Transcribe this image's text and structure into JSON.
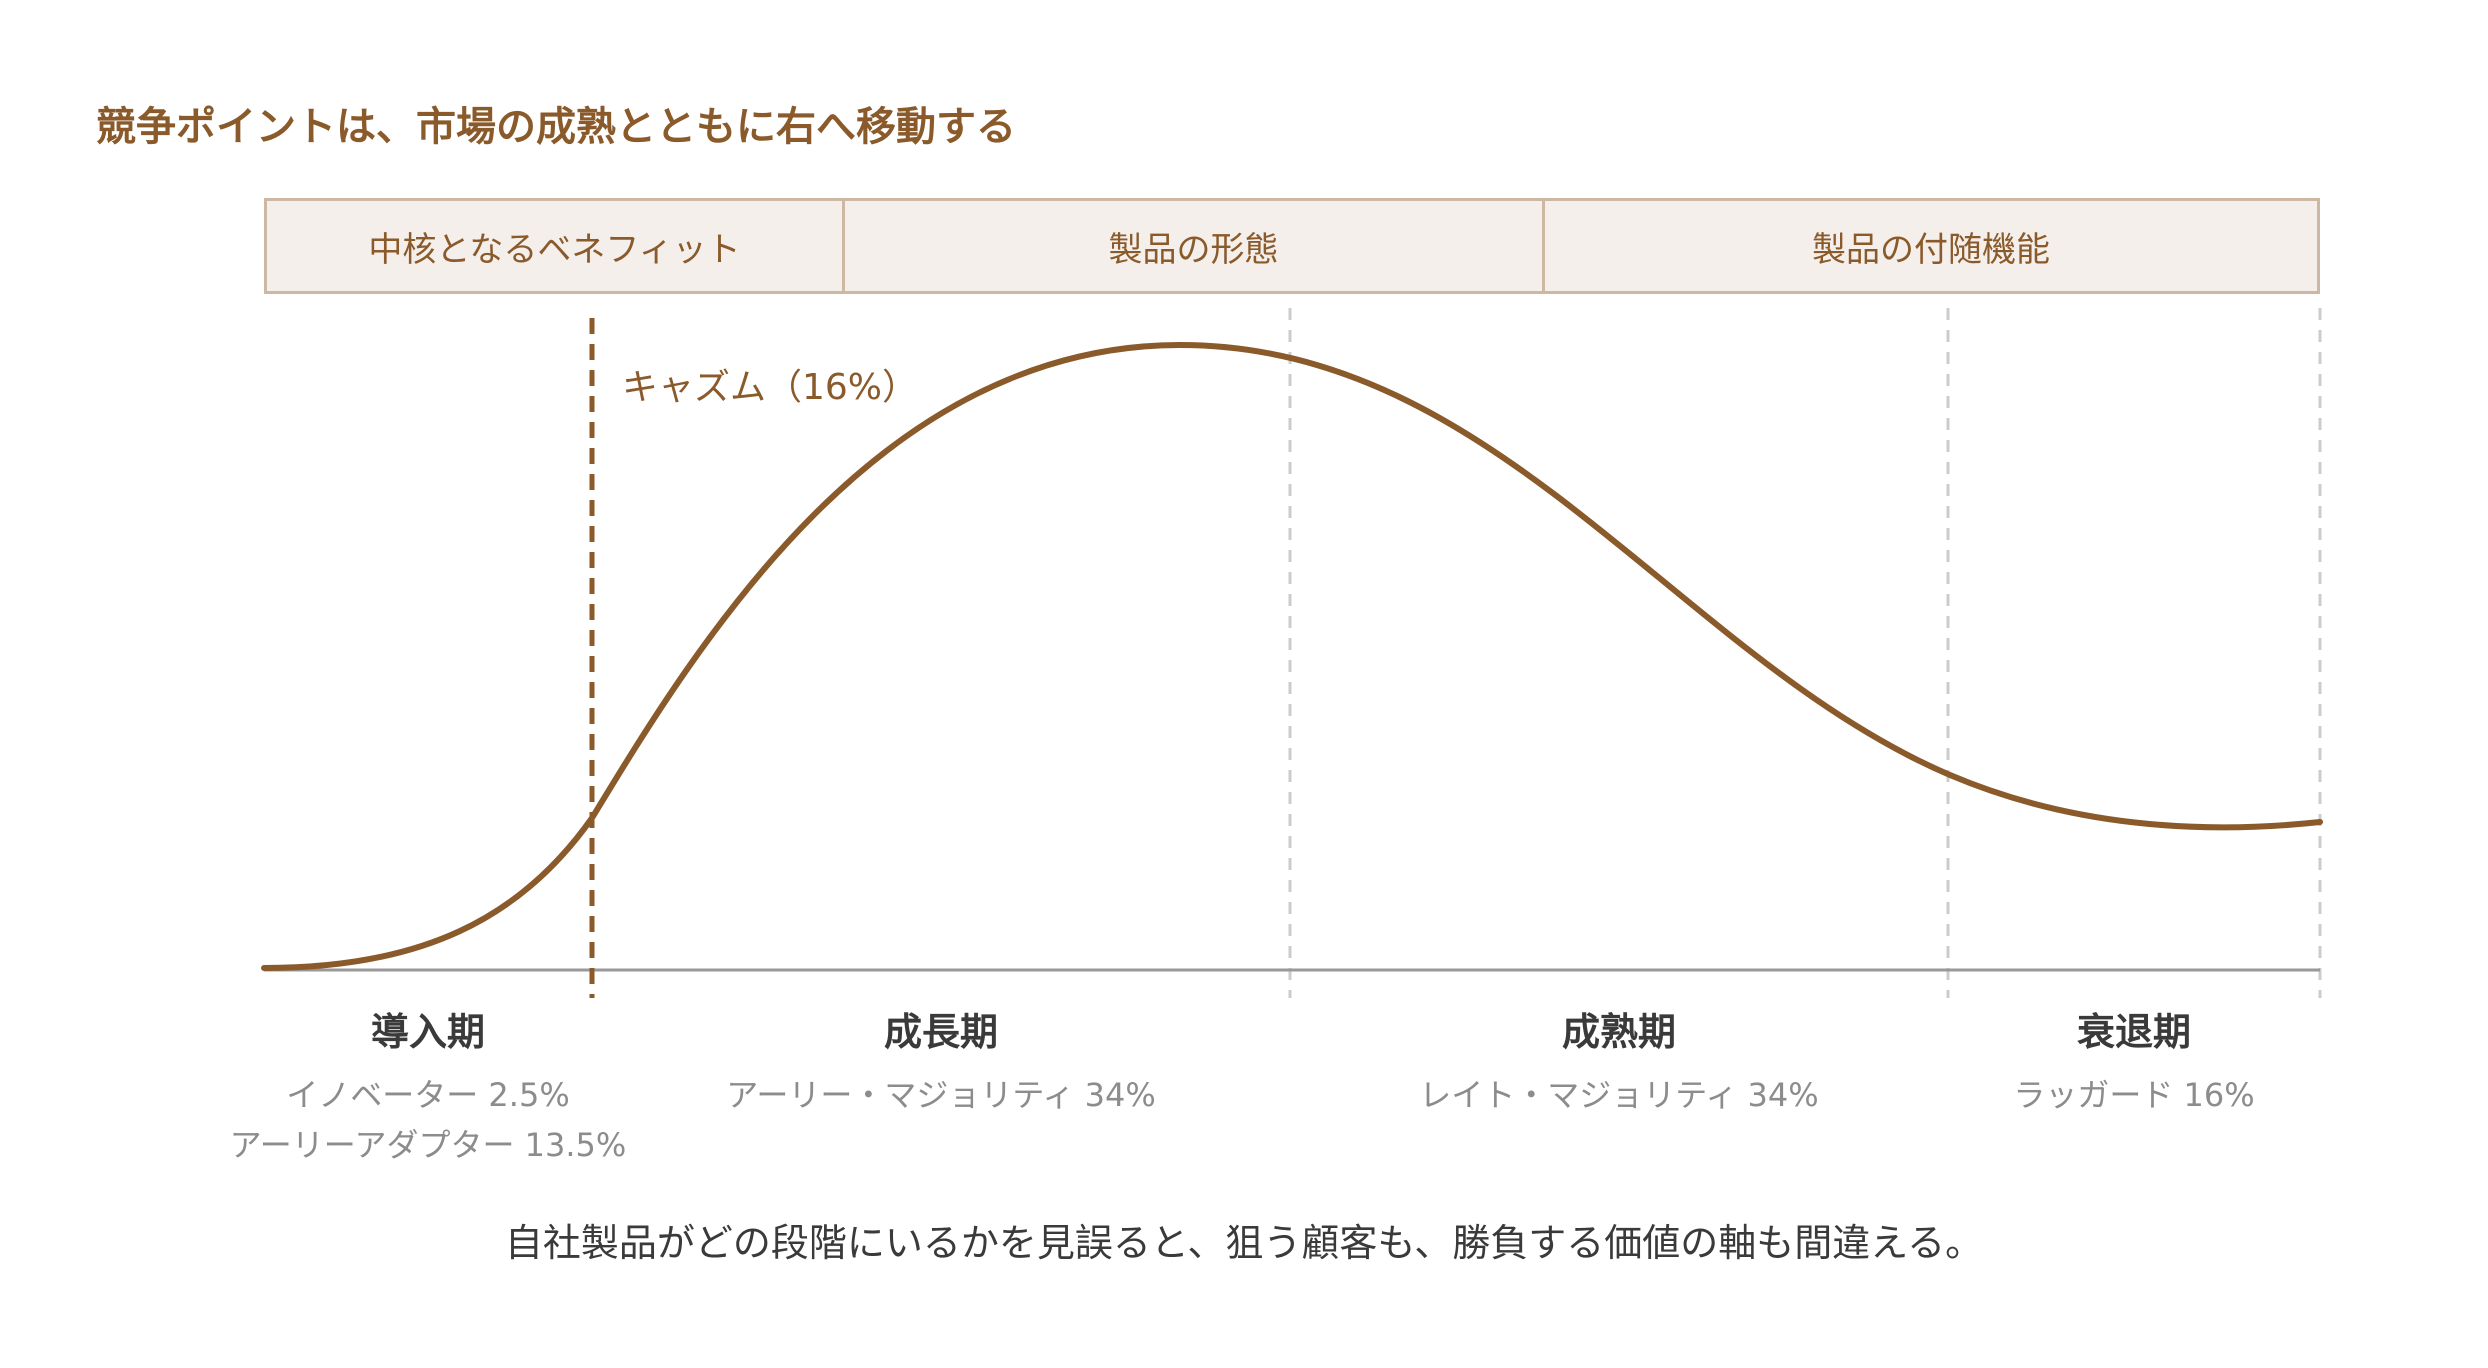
{
  "title": "競争ポイントは、市場の成熟とともに右へ移動する",
  "bands": [
    {
      "label": "中核となるベネフィット"
    },
    {
      "label": "製品の形態"
    },
    {
      "label": "製品の付随機能"
    }
  ],
  "chasm": {
    "label": "キャズム（16%）"
  },
  "phases": [
    {
      "name": "導入期",
      "subs": [
        "イノベーター 2.5%",
        "アーリーアダプター 13.5%"
      ]
    },
    {
      "name": "成長期",
      "subs": [
        "アーリー・マジョリティ 34%"
      ]
    },
    {
      "name": "成熟期",
      "subs": [
        "レイト・マジョリティ 34%"
      ]
    },
    {
      "name": "衰退期",
      "subs": [
        "ラッガード 16%"
      ]
    }
  ],
  "caption": "自社製品がどの段階にいるかを見誤ると、狙う顧客も、勝負する価値の軸も間違える。",
  "colors": {
    "accent": "#8a5a2b",
    "curve": "#8a5a2b",
    "divider": "#cccccc",
    "baseline": "#999999"
  }
}
